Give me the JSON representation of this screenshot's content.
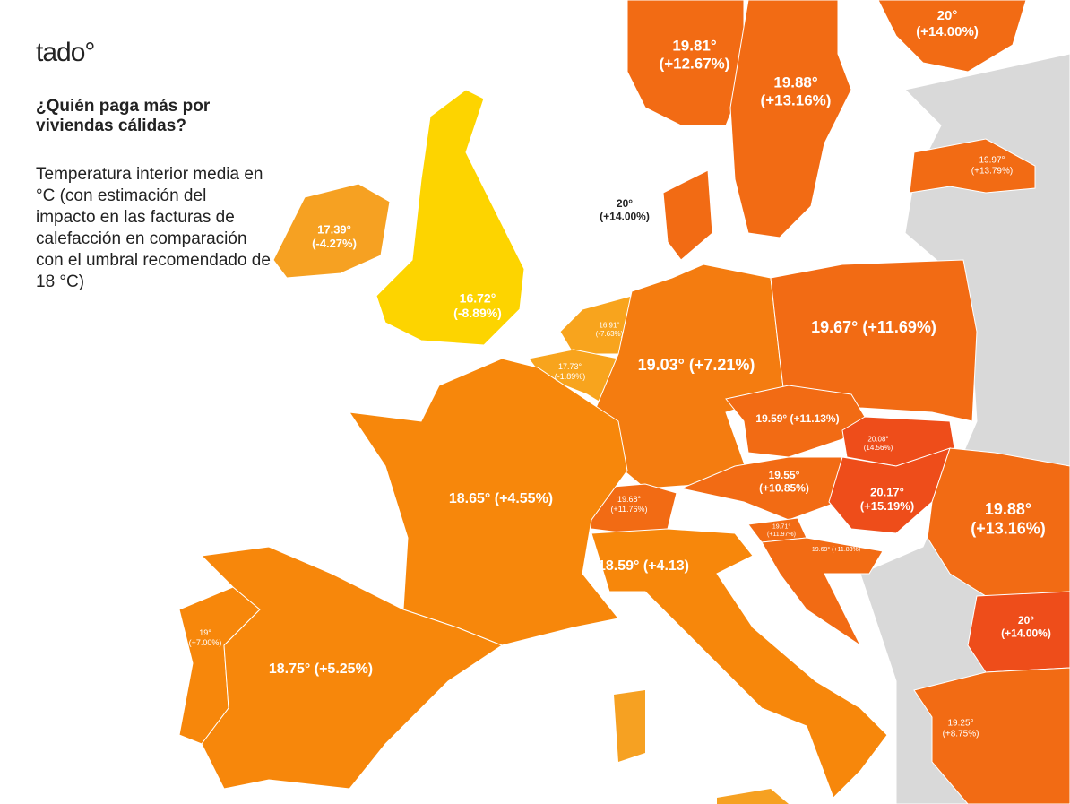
{
  "header": {
    "logo": "tado°",
    "title": "¿Quién paga más por viviendas cálidas?",
    "description": "Temperatura interior media en °C (con estimación del impacto en las facturas de calefacción en comparación con el umbral recomendado de 18 °C)"
  },
  "regions": [
    {
      "lines": [
        "19.81°",
        "(+12.67%)"
      ]
    },
    {
      "lines": [
        "19.88°",
        "(+13.16%)"
      ]
    },
    {
      "lines": [
        "20°",
        "(+14.00%)"
      ]
    },
    {
      "lines": [
        "19.97°",
        "(+13.79%)"
      ]
    },
    {
      "lines": [
        "20°",
        "(+14.00%)"
      ]
    },
    {
      "lines": [
        "17.39°",
        "(-4.27%)"
      ]
    },
    {
      "lines": [
        "16.72°",
        "(-8.89%)"
      ]
    },
    {
      "lines": [
        "16.91°",
        "(-7.63%)"
      ]
    },
    {
      "lines": [
        "17.73°",
        "(-1.89%)"
      ]
    },
    {
      "lines": [
        "19.03° (+7.21%)"
      ]
    },
    {
      "lines": [
        "19.67° (+11.69%)"
      ]
    },
    {
      "lines": [
        "19.59° (+11.13%)"
      ]
    },
    {
      "lines": [
        "20.08°",
        "(14.56%)"
      ]
    },
    {
      "lines": [
        "19.55°",
        "(+10.85%)"
      ]
    },
    {
      "lines": [
        "20.17°",
        "(+15.19%)"
      ]
    },
    {
      "lines": [
        "19.88°",
        "(+13.16%)"
      ]
    },
    {
      "lines": [
        "19.68°",
        "(+11.76%)"
      ]
    },
    {
      "lines": [
        "19.71°",
        "(+11.97%)"
      ]
    },
    {
      "lines": [
        "19.69° (+11.83%)"
      ]
    },
    {
      "lines": [
        "18.65° (+4.55%)"
      ]
    },
    {
      "lines": [
        "18.59° (+4.13)"
      ]
    },
    {
      "lines": [
        "19°",
        "(+7.00%)"
      ]
    },
    {
      "lines": [
        "18.75° (+5.25%)"
      ]
    },
    {
      "lines": [
        "20°",
        "(+14.00%)"
      ]
    },
    {
      "lines": [
        "19.25°",
        "(+8.75%)"
      ]
    }
  ]
}
